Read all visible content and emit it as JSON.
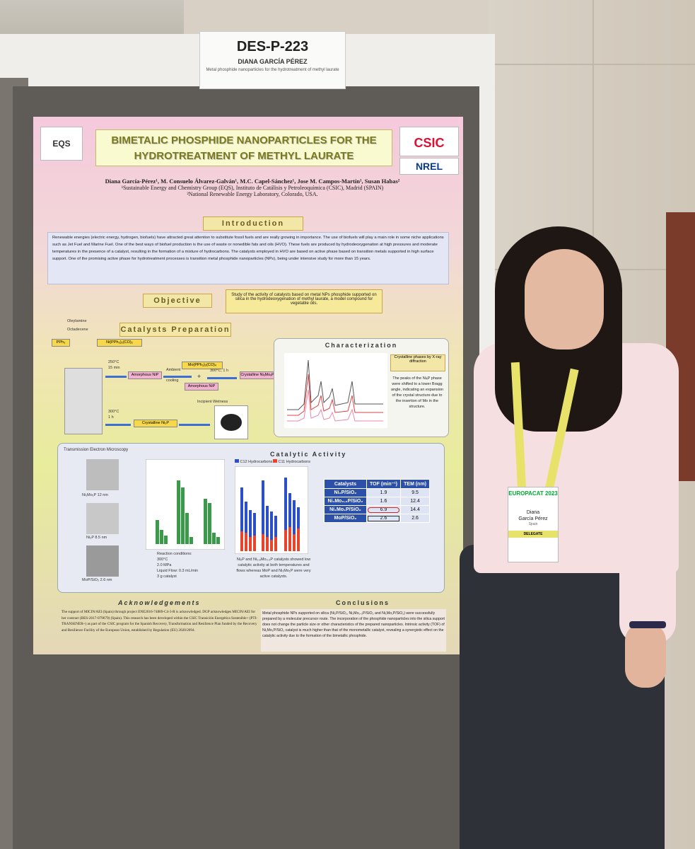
{
  "header_card": {
    "poster_id": "DES-P-223",
    "presenter": "DIANA GARCÍA PÉREZ",
    "subtitle": "Metal phosphide nanoparticles for the hydrotreatment of methyl laurate"
  },
  "poster": {
    "logo_left": "EQS",
    "title_line1": "BIMETALIC PHOSPHIDE NANOPARTICLES FOR THE",
    "title_line2": "HYDROTREATMENT OF METHYL LAURATE",
    "logo_csic": "CSIC",
    "logo_nrel": "NREL",
    "authors": "Diana García-Pérez¹, M. Consuelo Álvarez-Galván¹, M.C. Capel-Sánchez¹, Jose M. Campos-Martín¹, Susan Habas²",
    "affiliation1": "¹Sustainable Energy and Chemistry Group (EQS), Instituto de Catálisis y Petroleoquímica (CSIC), Madrid (SPAIN)",
    "affiliation2": "²National Renewable Energy Laboratory, Colorado, USA.",
    "introduction_title": "Introduction",
    "introduction_text": "Renewable energies (electric energy, hydrogen, biofuels) have attracted great attention to substitute fossil fuels and are really growing in importance. The use of biofuels will play a main role in some niche applications such as Jet Fuel and Marine Fuel. One of the best ways of biofuel production is the use of waste or nonedible fats and oils (HVO). These fuels are produced by hydrodeoxygenation at high pressures and moderate temperatures in the presence of a catalyst, resulting in the formation of a mixture of hydrocarbons. The catalysts employed in HVO are based on active phase based on transition metals supported in high surface support. One of the promising active phase for hydrotreatment processes is transition metal phosphide nanoparticles (NPs), being under intensive study for more than 15 years.",
    "objective_title": "Objective",
    "objective_text": "Study of the activity of catalysts based on metal NPs phosphide supported on silica in the hydrodeoxygenation of methyl laurate, a model compound for vegetable oils.",
    "prep_title": "Catalysts Preparation",
    "prep_labels": {
      "oleylamine": "Oleylamine",
      "octadecene": "Octadecene",
      "pph3": "PPh₃",
      "ni_complex": "Ni(PPh₃)₂(CO)₂",
      "temp1": "250°C",
      "time1": "15 min",
      "amorphous_nip": "Amorphous NiP",
      "ambient": "Ambient",
      "cooling": "cooling",
      "mo_complex": "Mo(PPh₃)₂(CO)₄",
      "plus": "+",
      "amorphous_nip2": "Amorphous NiP",
      "temp2": "300°C, 1 h",
      "crystalline_nimop": "Crystalline NiₓMoₓP",
      "incipient": "Incipient Wetness",
      "temp3": "300°C",
      "time3": "1 h",
      "crystalline_ni2p": "Crystalline Ni₂P"
    },
    "characterization_title": "Characterization",
    "crystalline_note": "Crystalline phases by X-ray diffraction",
    "char_note": "The peaks of the NiₓP phase were shifted to a lower Bragg angle, indicating an expansion of the crystal structure due to the insertion of Mo in the structure.",
    "tem_title": "Transmission Electron Microscopy",
    "tem_labels": [
      "Ni₁Mo₁P  12 nm",
      "Ni₂P  8.5 nm",
      "MoP/SiO₂  2.6 nm"
    ],
    "catalytic_title": "Catalytic Activity",
    "reaction_conditions": [
      "Reaction conditions:",
      "300°C",
      "2.0 MPa",
      "Liquid Flow: 0.3 mL/min",
      "3 g catalyst"
    ],
    "catalytic_note": "Ni₂P and Ni₁.₈Mo₀.₂P catalysts showed low catalytic activity at both temperatures and flows whereas MoP and Ni₁Mo₁P were very active catalysts.",
    "legend_c12": "C12 Hydrocarbons",
    "legend_c11": "C11 Hydrocarbons",
    "table": {
      "headers": [
        "Catalysts",
        "TOF (min⁻¹)",
        "TEM (nm)"
      ],
      "rows": [
        [
          "Ni₂P/SiO₂",
          "1.9",
          "9.5"
        ],
        [
          "Ni₁Mo₀.₂P/SiO₂",
          "1.6",
          "12.4"
        ],
        [
          "Ni₁Mo₁P/SiO₂",
          "6.9",
          "14.4"
        ],
        [
          "MoP/SiO₂",
          "2.6",
          "2.6"
        ]
      ]
    },
    "ack_title": "Acknowledgements",
    "ack_text": "The support of MICIN/AEI (Spain) through project ENE2016-74889-C4-3-R is acknowledged. DGP acknowledges MICIN/AEI for her contract (BES-2017-079679) (Spain). This research has been developed within the CSIC Transición Energética Sostenible+ (PTI-TRANSENER+) as part of the CSIC program for the Spanish Recovery, Transformation and Resilience Plan funded by the Recovery and Resilience Facility of the European Union, established by Regulation (EU) 2020/2094.",
    "conclusions_title": "Conclusions",
    "conclusions_text": "Metal phosphide NPs supported on silica (Ni₂P/SiO₂, Ni₁Mo₀.₂P/SiO₂ and Ni₁Mo₁P/SiO₂) were successfully prepared by a molecular precursor route. The incorporation of the phosphide nanoparticles into the silica support does not change the particle size or other characteristics of the prepared nanoparticles. Intrinsic activity (TOF) of Ni₁Mo₁P/SiO₂ catalyst is much higher than that of the monometallic catalyst, revealing a synergistic effect on the catalytic activity due to the formation of the bimetallic phosphide."
  },
  "badge": {
    "event": "EUROPACAT 2023",
    "name_line1": "Diana",
    "name_line2": "García Pérez",
    "country": "Spain",
    "role": "DELEGATE"
  }
}
